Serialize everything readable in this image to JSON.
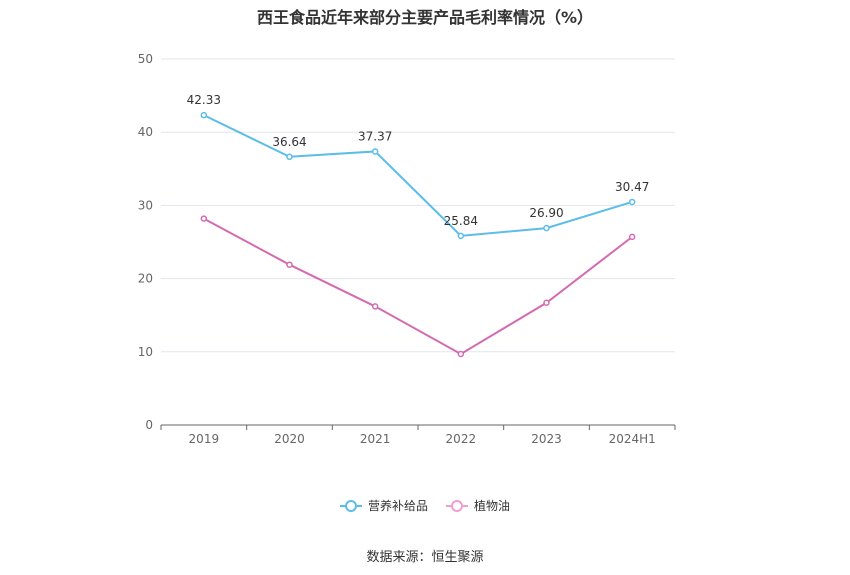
{
  "chart_data": {
    "type": "line",
    "title": "西王食品近年来部分主要产品毛利率情况（%）",
    "categories": [
      "2019",
      "2020",
      "2021",
      "2022",
      "2023",
      "2024H1"
    ],
    "ylim": [
      0,
      50
    ],
    "yticks": [
      0,
      10,
      20,
      30,
      40,
      50
    ],
    "grid": true,
    "legend_position": "bottom",
    "series": [
      {
        "name": "营养补给品",
        "color": "#5bbde8",
        "values": [
          42.33,
          36.64,
          37.37,
          25.84,
          26.9,
          30.47
        ],
        "labels": [
          "42.33",
          "36.64",
          "37.37",
          "25.84",
          "26.90",
          "30.47"
        ]
      },
      {
        "name": "植物油",
        "color": "#d46bb0",
        "values": [
          28.2,
          21.9,
          16.2,
          9.7,
          16.7,
          25.7
        ]
      }
    ]
  },
  "source": "数据来源：恒生聚源"
}
